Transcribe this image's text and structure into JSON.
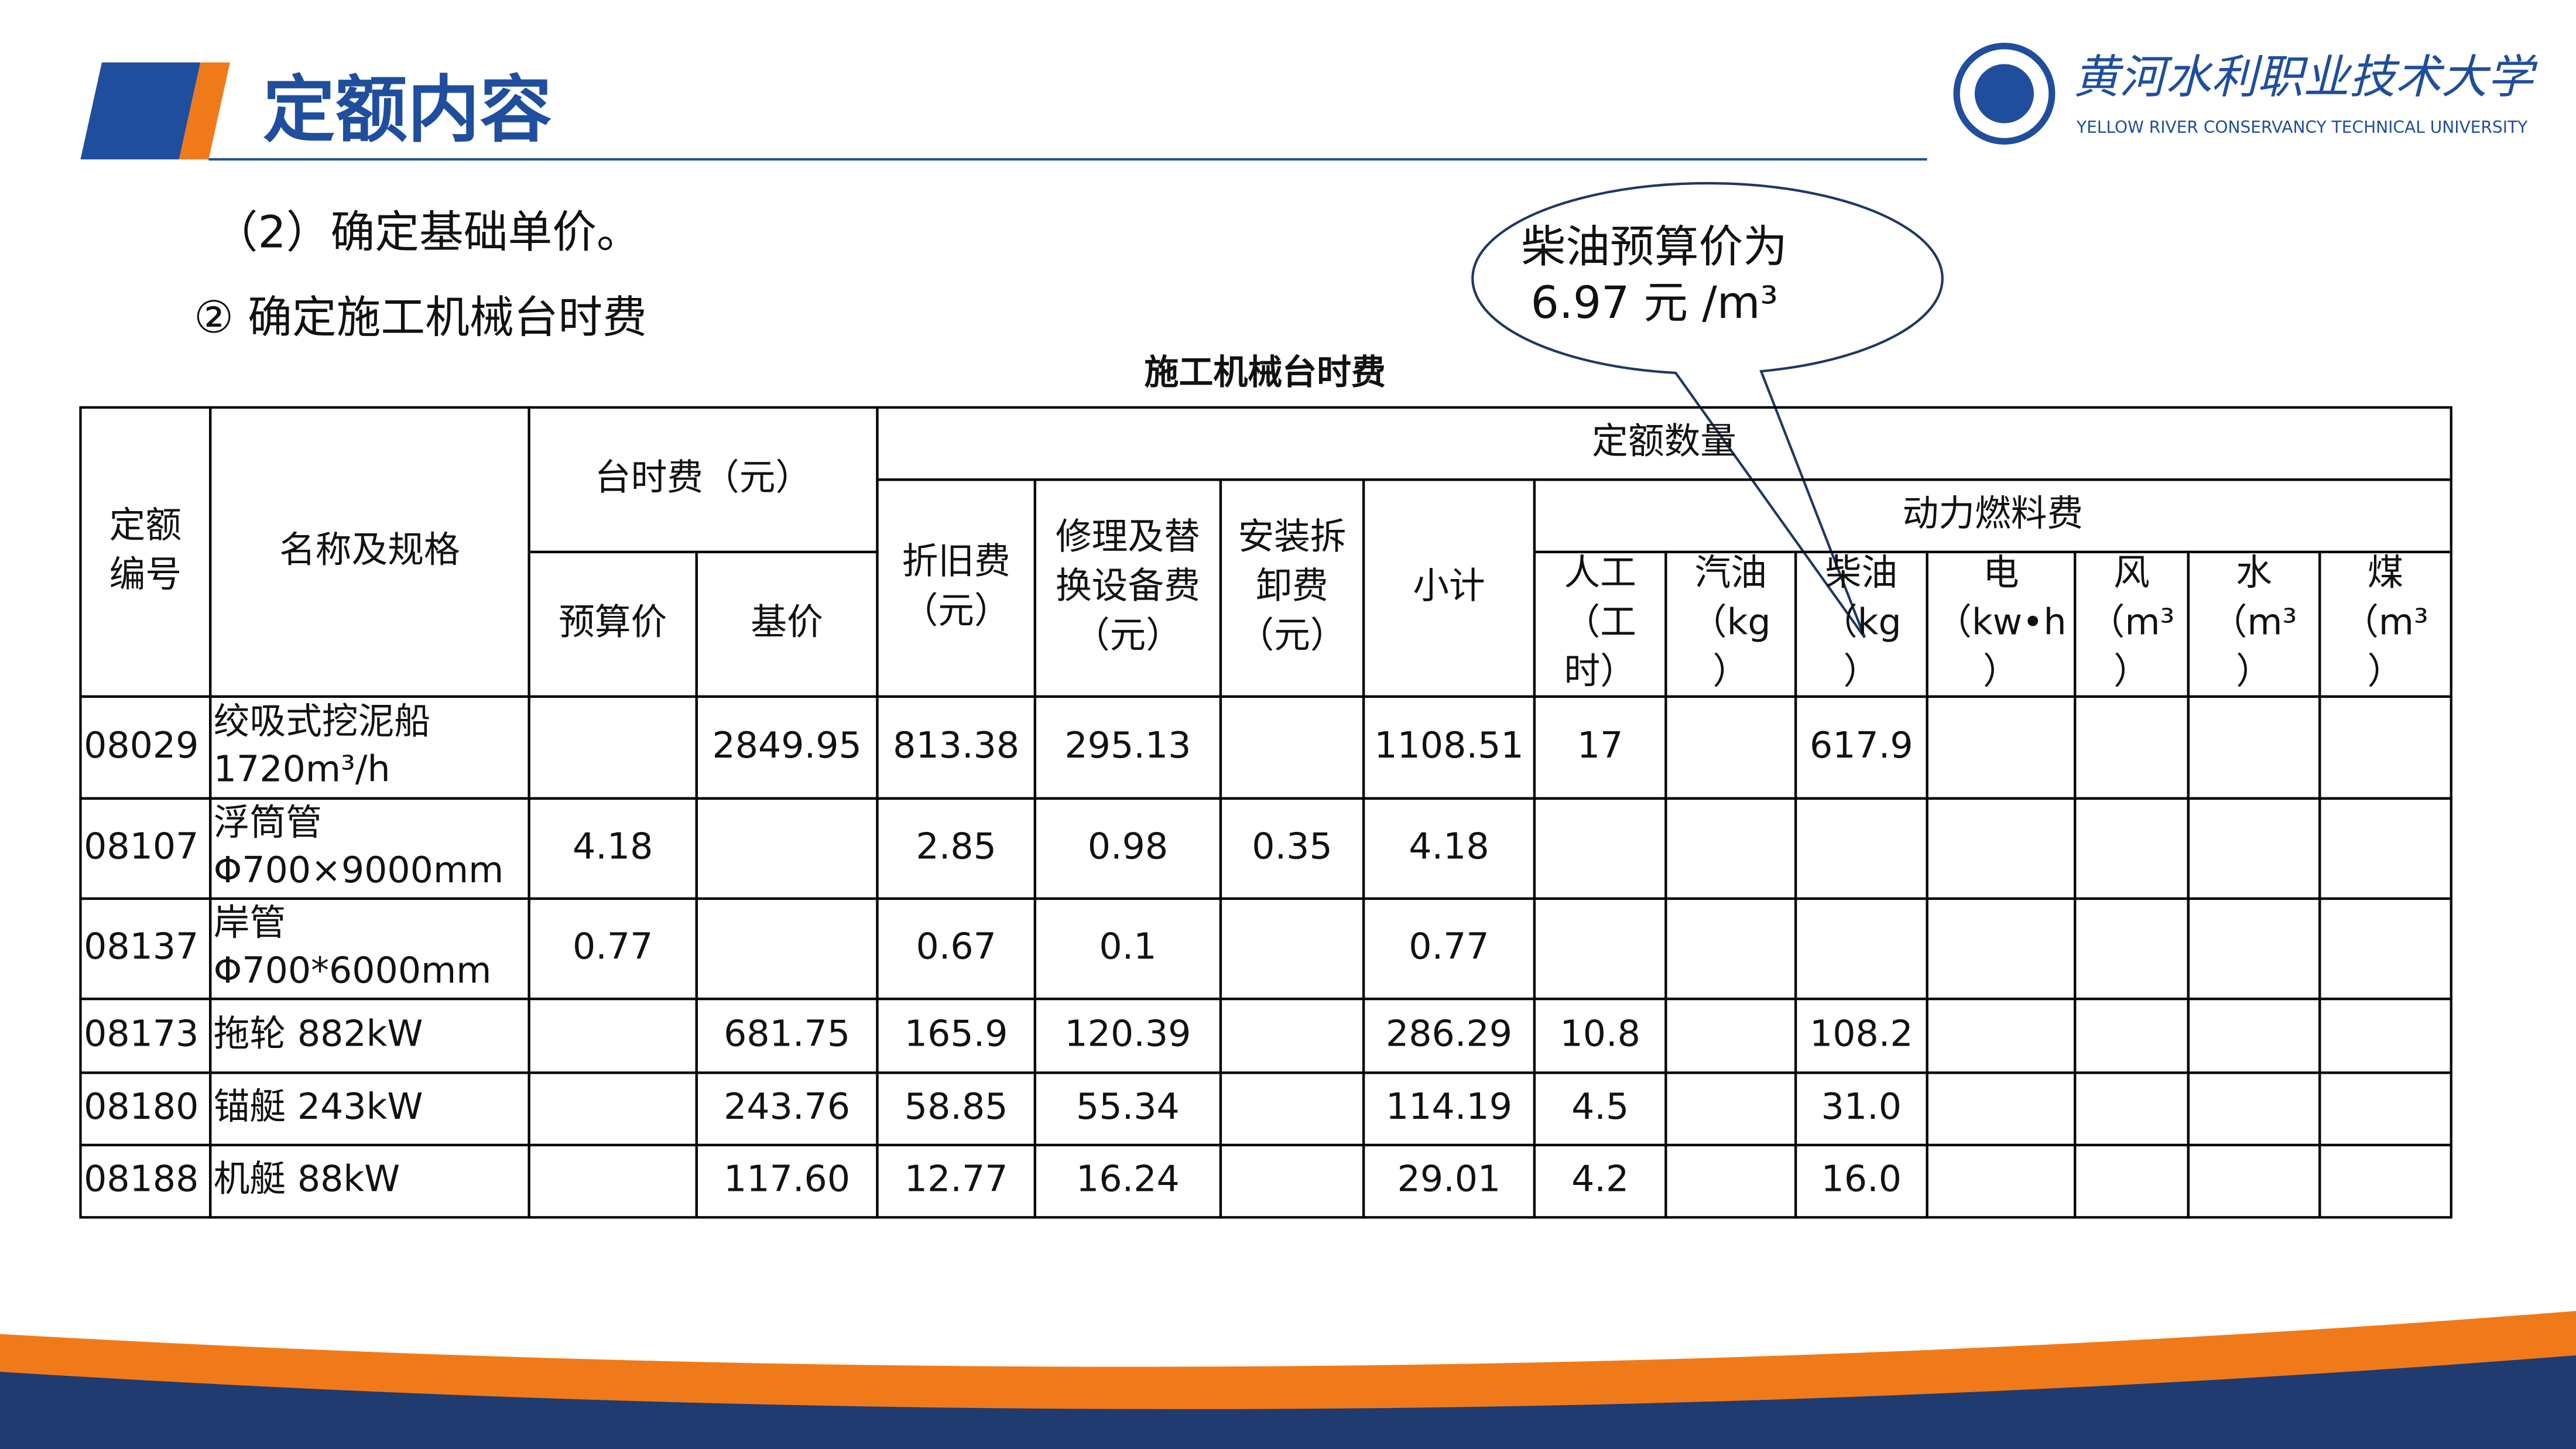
{
  "header": {
    "title": "定额内容"
  },
  "logo": {
    "name": "黄河水利职业技术大学",
    "english": "YELLOW RIVER CONSERVANCY TECHNICAL UNIVERSITY"
  },
  "content": {
    "line1": "（2）确定基础单价。",
    "line2": "② 确定施工机械台时费"
  },
  "callout": {
    "lines": [
      "柴油预算价为",
      "6.97 元 /m³"
    ]
  },
  "table": {
    "caption": "施工机械台时费",
    "headers": [
      [
        "定额",
        "编号"
      ],
      [
        "名称及规格"
      ],
      [
        "台时费（元）"
      ],
      [
        "预算价"
      ],
      [
        "基价"
      ],
      [
        "定额数量"
      ],
      [
        "折旧费",
        "（元）"
      ],
      [
        "修理及替",
        "换设备费",
        "（元）"
      ],
      [
        "安装拆",
        "卸费",
        "（元）"
      ],
      [
        "小计"
      ],
      [
        "动力燃料费"
      ],
      [
        "人工",
        "（工",
        "时）"
      ],
      [
        "汽油",
        "（kg",
        "）"
      ],
      [
        "柴油",
        "（kg",
        "）"
      ],
      [
        "电",
        "（kw•h",
        "）"
      ],
      [
        "风",
        "（m³",
        "）"
      ],
      [
        "水",
        "（m³",
        "）"
      ],
      [
        "煤",
        "（m³",
        "）"
      ]
    ],
    "rows": [
      [
        "08029",
        [
          "绞吸式挖泥船",
          "1720m³/h"
        ],
        null,
        "2849.95",
        "813.38",
        "295.13",
        null,
        "1108.51",
        "17",
        null,
        "617.9",
        null,
        null,
        null,
        null
      ],
      [
        "08107",
        [
          "浮筒管",
          "Φ700×9000mm"
        ],
        "4.18",
        null,
        "2.85",
        "0.98",
        "0.35",
        "4.18",
        null,
        null,
        null,
        null,
        null,
        null,
        null
      ],
      [
        "08137",
        [
          "岸管",
          "Φ700*6000mm"
        ],
        "0.77",
        null,
        "0.67",
        "0.1",
        null,
        "0.77",
        null,
        null,
        null,
        null,
        null,
        null,
        null
      ],
      [
        "08173",
        [
          "拖轮 882kW"
        ],
        null,
        "681.75",
        "165.9",
        "120.39",
        null,
        "286.29",
        "10.8",
        null,
        "108.2",
        null,
        null,
        null,
        null
      ],
      [
        "08180",
        [
          "锚艇 243kW"
        ],
        null,
        "243.76",
        "58.85",
        "55.34",
        null,
        "114.19",
        "4.5",
        null,
        "31.0",
        null,
        null,
        null,
        null
      ],
      [
        "08188",
        [
          "机艇 88kW"
        ],
        null,
        "117.60",
        "12.77",
        "16.24",
        null,
        "29.01",
        "4.2",
        null,
        "16.0",
        null,
        null,
        null,
        null
      ]
    ]
  }
}
